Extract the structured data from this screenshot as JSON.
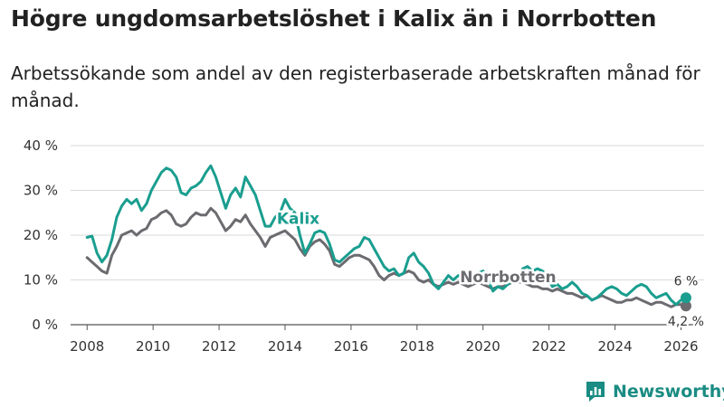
{
  "header": {
    "title": "Högre ungdomsarbetslöshet i Kalix än i Norrbotten",
    "subtitle": "Arbetssökande som andel av den registerbaserade arbetskraften månad för månad."
  },
  "brand": {
    "name": "Newsworthy",
    "color": "#1a8c83"
  },
  "chart_data": {
    "type": "line",
    "title": "Högre ungdomsarbetslöshet i Kalix än i Norrbotten",
    "xlabel": "",
    "ylabel": "",
    "xlim": [
      2007.5,
      2026.7
    ],
    "ylim": [
      0,
      40
    ],
    "grid": true,
    "x_ticks": [
      2008,
      2010,
      2012,
      2014,
      2016,
      2018,
      2020,
      2022,
      2024,
      2026
    ],
    "x_tick_labels": [
      "2008",
      "2010",
      "2012",
      "2014",
      "2016",
      "2018",
      "2020",
      "2022",
      "2024",
      "2026"
    ],
    "y_ticks": [
      0,
      10,
      20,
      30,
      40
    ],
    "y_tick_labels": [
      "0 %",
      "10 %",
      "20 %",
      "30 %",
      "40 %"
    ],
    "series": [
      {
        "name": "Kalix",
        "color": "#1a9e8f",
        "end_label": "6 %",
        "points": [
          [
            2008.0,
            19.5
          ],
          [
            2008.15,
            19.8
          ],
          [
            2008.3,
            16
          ],
          [
            2008.45,
            14
          ],
          [
            2008.6,
            15.5
          ],
          [
            2008.75,
            19
          ],
          [
            2008.9,
            24
          ],
          [
            2009.05,
            26.5
          ],
          [
            2009.2,
            28
          ],
          [
            2009.35,
            27
          ],
          [
            2009.5,
            28
          ],
          [
            2009.65,
            25.5
          ],
          [
            2009.8,
            27
          ],
          [
            2009.95,
            30
          ],
          [
            2010.1,
            32
          ],
          [
            2010.25,
            34
          ],
          [
            2010.4,
            35
          ],
          [
            2010.55,
            34.5
          ],
          [
            2010.7,
            33
          ],
          [
            2010.85,
            29.5
          ],
          [
            2011.0,
            29
          ],
          [
            2011.15,
            30.5
          ],
          [
            2011.3,
            31
          ],
          [
            2011.45,
            32
          ],
          [
            2011.6,
            34
          ],
          [
            2011.75,
            35.5
          ],
          [
            2011.9,
            33
          ],
          [
            2012.05,
            29.5
          ],
          [
            2012.2,
            26
          ],
          [
            2012.35,
            29
          ],
          [
            2012.5,
            30.5
          ],
          [
            2012.65,
            28.5
          ],
          [
            2012.8,
            33
          ],
          [
            2012.95,
            31
          ],
          [
            2013.1,
            29
          ],
          [
            2013.25,
            25.5
          ],
          [
            2013.4,
            22
          ],
          [
            2013.55,
            22
          ],
          [
            2013.7,
            24
          ],
          [
            2013.85,
            25
          ],
          [
            2014.0,
            28
          ],
          [
            2014.15,
            26
          ],
          [
            2014.3,
            25
          ],
          [
            2014.45,
            20
          ],
          [
            2014.6,
            16
          ],
          [
            2014.75,
            18
          ],
          [
            2014.9,
            20.5
          ],
          [
            2015.05,
            21
          ],
          [
            2015.2,
            20.5
          ],
          [
            2015.35,
            18
          ],
          [
            2015.5,
            14.5
          ],
          [
            2015.65,
            14
          ],
          [
            2015.8,
            15
          ],
          [
            2015.95,
            16
          ],
          [
            2016.1,
            17
          ],
          [
            2016.25,
            17.5
          ],
          [
            2016.4,
            19.5
          ],
          [
            2016.55,
            19
          ],
          [
            2016.7,
            17
          ],
          [
            2016.85,
            15
          ],
          [
            2017.0,
            13
          ],
          [
            2017.15,
            12
          ],
          [
            2017.3,
            12.5
          ],
          [
            2017.45,
            11
          ],
          [
            2017.6,
            11.5
          ],
          [
            2017.75,
            15
          ],
          [
            2017.9,
            16
          ],
          [
            2018.05,
            14
          ],
          [
            2018.2,
            13
          ],
          [
            2018.35,
            11.5
          ],
          [
            2018.5,
            9
          ],
          [
            2018.65,
            8
          ],
          [
            2018.8,
            9.5
          ],
          [
            2018.95,
            11
          ],
          [
            2019.1,
            10
          ],
          [
            2019.25,
            11
          ],
          [
            2019.4,
            10.5
          ],
          [
            2019.55,
            9.5
          ],
          [
            2019.7,
            10
          ],
          [
            2019.85,
            11.5
          ],
          [
            2020.0,
            12
          ],
          [
            2020.15,
            10
          ],
          [
            2020.3,
            7.5
          ],
          [
            2020.45,
            8.5
          ],
          [
            2020.6,
            8
          ],
          [
            2020.75,
            9
          ],
          [
            2020.9,
            10
          ],
          [
            2021.05,
            10.5
          ],
          [
            2021.2,
            12.5
          ],
          [
            2021.35,
            13
          ],
          [
            2021.5,
            12
          ],
          [
            2021.65,
            12.5
          ],
          [
            2021.8,
            12
          ],
          [
            2021.95,
            11
          ],
          [
            2022.1,
            8.5
          ],
          [
            2022.25,
            9
          ],
          [
            2022.4,
            8
          ],
          [
            2022.55,
            8.5
          ],
          [
            2022.7,
            9.5
          ],
          [
            2022.85,
            8.5
          ],
          [
            2023.0,
            7
          ],
          [
            2023.15,
            6.5
          ],
          [
            2023.3,
            5.5
          ],
          [
            2023.45,
            6
          ],
          [
            2023.6,
            7
          ],
          [
            2023.75,
            8
          ],
          [
            2023.9,
            8.5
          ],
          [
            2024.05,
            8
          ],
          [
            2024.2,
            7
          ],
          [
            2024.35,
            6.5
          ],
          [
            2024.5,
            7.5
          ],
          [
            2024.65,
            8.5
          ],
          [
            2024.8,
            9
          ],
          [
            2024.95,
            8.5
          ],
          [
            2025.1,
            7
          ],
          [
            2025.25,
            6
          ],
          [
            2025.4,
            6.5
          ],
          [
            2025.55,
            7
          ],
          [
            2025.7,
            5.5
          ],
          [
            2025.85,
            4.5
          ],
          [
            2026.0,
            5.5
          ],
          [
            2026.15,
            6
          ]
        ]
      },
      {
        "name": "Norrbotten",
        "color": "#6b6b70",
        "end_label": "4,2 %",
        "points": [
          [
            2008.0,
            15
          ],
          [
            2008.15,
            14
          ],
          [
            2008.3,
            13
          ],
          [
            2008.45,
            12
          ],
          [
            2008.6,
            11.5
          ],
          [
            2008.75,
            15.5
          ],
          [
            2008.9,
            17.5
          ],
          [
            2009.05,
            20
          ],
          [
            2009.2,
            20.5
          ],
          [
            2009.35,
            21
          ],
          [
            2009.5,
            20
          ],
          [
            2009.65,
            21
          ],
          [
            2009.8,
            21.5
          ],
          [
            2009.95,
            23.5
          ],
          [
            2010.1,
            24
          ],
          [
            2010.25,
            25
          ],
          [
            2010.4,
            25.5
          ],
          [
            2010.55,
            24.5
          ],
          [
            2010.7,
            22.5
          ],
          [
            2010.85,
            22
          ],
          [
            2011.0,
            22.5
          ],
          [
            2011.15,
            24
          ],
          [
            2011.3,
            25
          ],
          [
            2011.45,
            24.5
          ],
          [
            2011.6,
            24.5
          ],
          [
            2011.75,
            26
          ],
          [
            2011.9,
            25
          ],
          [
            2012.05,
            23
          ],
          [
            2012.2,
            21
          ],
          [
            2012.35,
            22
          ],
          [
            2012.5,
            23.5
          ],
          [
            2012.65,
            23
          ],
          [
            2012.8,
            24.5
          ],
          [
            2012.95,
            22.5
          ],
          [
            2013.1,
            21
          ],
          [
            2013.25,
            19.5
          ],
          [
            2013.4,
            17.5
          ],
          [
            2013.55,
            19.5
          ],
          [
            2013.7,
            20
          ],
          [
            2013.85,
            20.5
          ],
          [
            2014.0,
            21
          ],
          [
            2014.15,
            20
          ],
          [
            2014.3,
            19
          ],
          [
            2014.45,
            17
          ],
          [
            2014.6,
            15.5
          ],
          [
            2014.75,
            17.5
          ],
          [
            2014.9,
            18.5
          ],
          [
            2015.05,
            19
          ],
          [
            2015.2,
            18
          ],
          [
            2015.35,
            16.5
          ],
          [
            2015.5,
            13.5
          ],
          [
            2015.65,
            13
          ],
          [
            2015.8,
            14
          ],
          [
            2015.95,
            15
          ],
          [
            2016.1,
            15.5
          ],
          [
            2016.25,
            15.5
          ],
          [
            2016.4,
            15
          ],
          [
            2016.55,
            14.5
          ],
          [
            2016.7,
            13
          ],
          [
            2016.85,
            11
          ],
          [
            2017.0,
            10
          ],
          [
            2017.15,
            11
          ],
          [
            2017.3,
            11.5
          ],
          [
            2017.45,
            11
          ],
          [
            2017.6,
            11.5
          ],
          [
            2017.75,
            12
          ],
          [
            2017.9,
            11.5
          ],
          [
            2018.05,
            10
          ],
          [
            2018.2,
            9.5
          ],
          [
            2018.35,
            10
          ],
          [
            2018.5,
            9
          ],
          [
            2018.65,
            8.5
          ],
          [
            2018.8,
            9
          ],
          [
            2018.95,
            9.5
          ],
          [
            2019.1,
            9
          ],
          [
            2019.25,
            9.5
          ],
          [
            2019.4,
            9
          ],
          [
            2019.55,
            8.5
          ],
          [
            2019.7,
            9
          ],
          [
            2019.85,
            9.5
          ],
          [
            2020.0,
            9
          ],
          [
            2020.15,
            8.5
          ],
          [
            2020.3,
            8
          ],
          [
            2020.45,
            8.5
          ],
          [
            2020.6,
            8.5
          ],
          [
            2020.75,
            9
          ],
          [
            2020.9,
            9.5
          ],
          [
            2021.05,
            9.5
          ],
          [
            2021.2,
            9.5
          ],
          [
            2021.35,
            9
          ],
          [
            2021.5,
            8.5
          ],
          [
            2021.65,
            8.5
          ],
          [
            2021.8,
            8
          ],
          [
            2021.95,
            8
          ],
          [
            2022.1,
            7.5
          ],
          [
            2022.25,
            8
          ],
          [
            2022.4,
            7.5
          ],
          [
            2022.55,
            7
          ],
          [
            2022.7,
            7
          ],
          [
            2022.85,
            6.5
          ],
          [
            2023.0,
            6
          ],
          [
            2023.15,
            6.5
          ],
          [
            2023.3,
            5.5
          ],
          [
            2023.45,
            6
          ],
          [
            2023.6,
            6.5
          ],
          [
            2023.75,
            6
          ],
          [
            2023.9,
            5.5
          ],
          [
            2024.05,
            5
          ],
          [
            2024.2,
            5
          ],
          [
            2024.35,
            5.5
          ],
          [
            2024.5,
            5.5
          ],
          [
            2024.65,
            6
          ],
          [
            2024.8,
            5.5
          ],
          [
            2024.95,
            5
          ],
          [
            2025.1,
            4.5
          ],
          [
            2025.25,
            5
          ],
          [
            2025.4,
            5
          ],
          [
            2025.55,
            4.5
          ],
          [
            2025.7,
            4
          ],
          [
            2025.85,
            4.5
          ],
          [
            2026.0,
            4.5
          ],
          [
            2026.15,
            4.2
          ]
        ]
      }
    ],
    "annotations": [
      {
        "text": "Kalix",
        "series": "Kalix",
        "x": 2013.75,
        "y": 22.5
      },
      {
        "text": "Norrbotten",
        "series": "Norrbotten",
        "x": 2019.3,
        "y": 9.5
      }
    ]
  }
}
